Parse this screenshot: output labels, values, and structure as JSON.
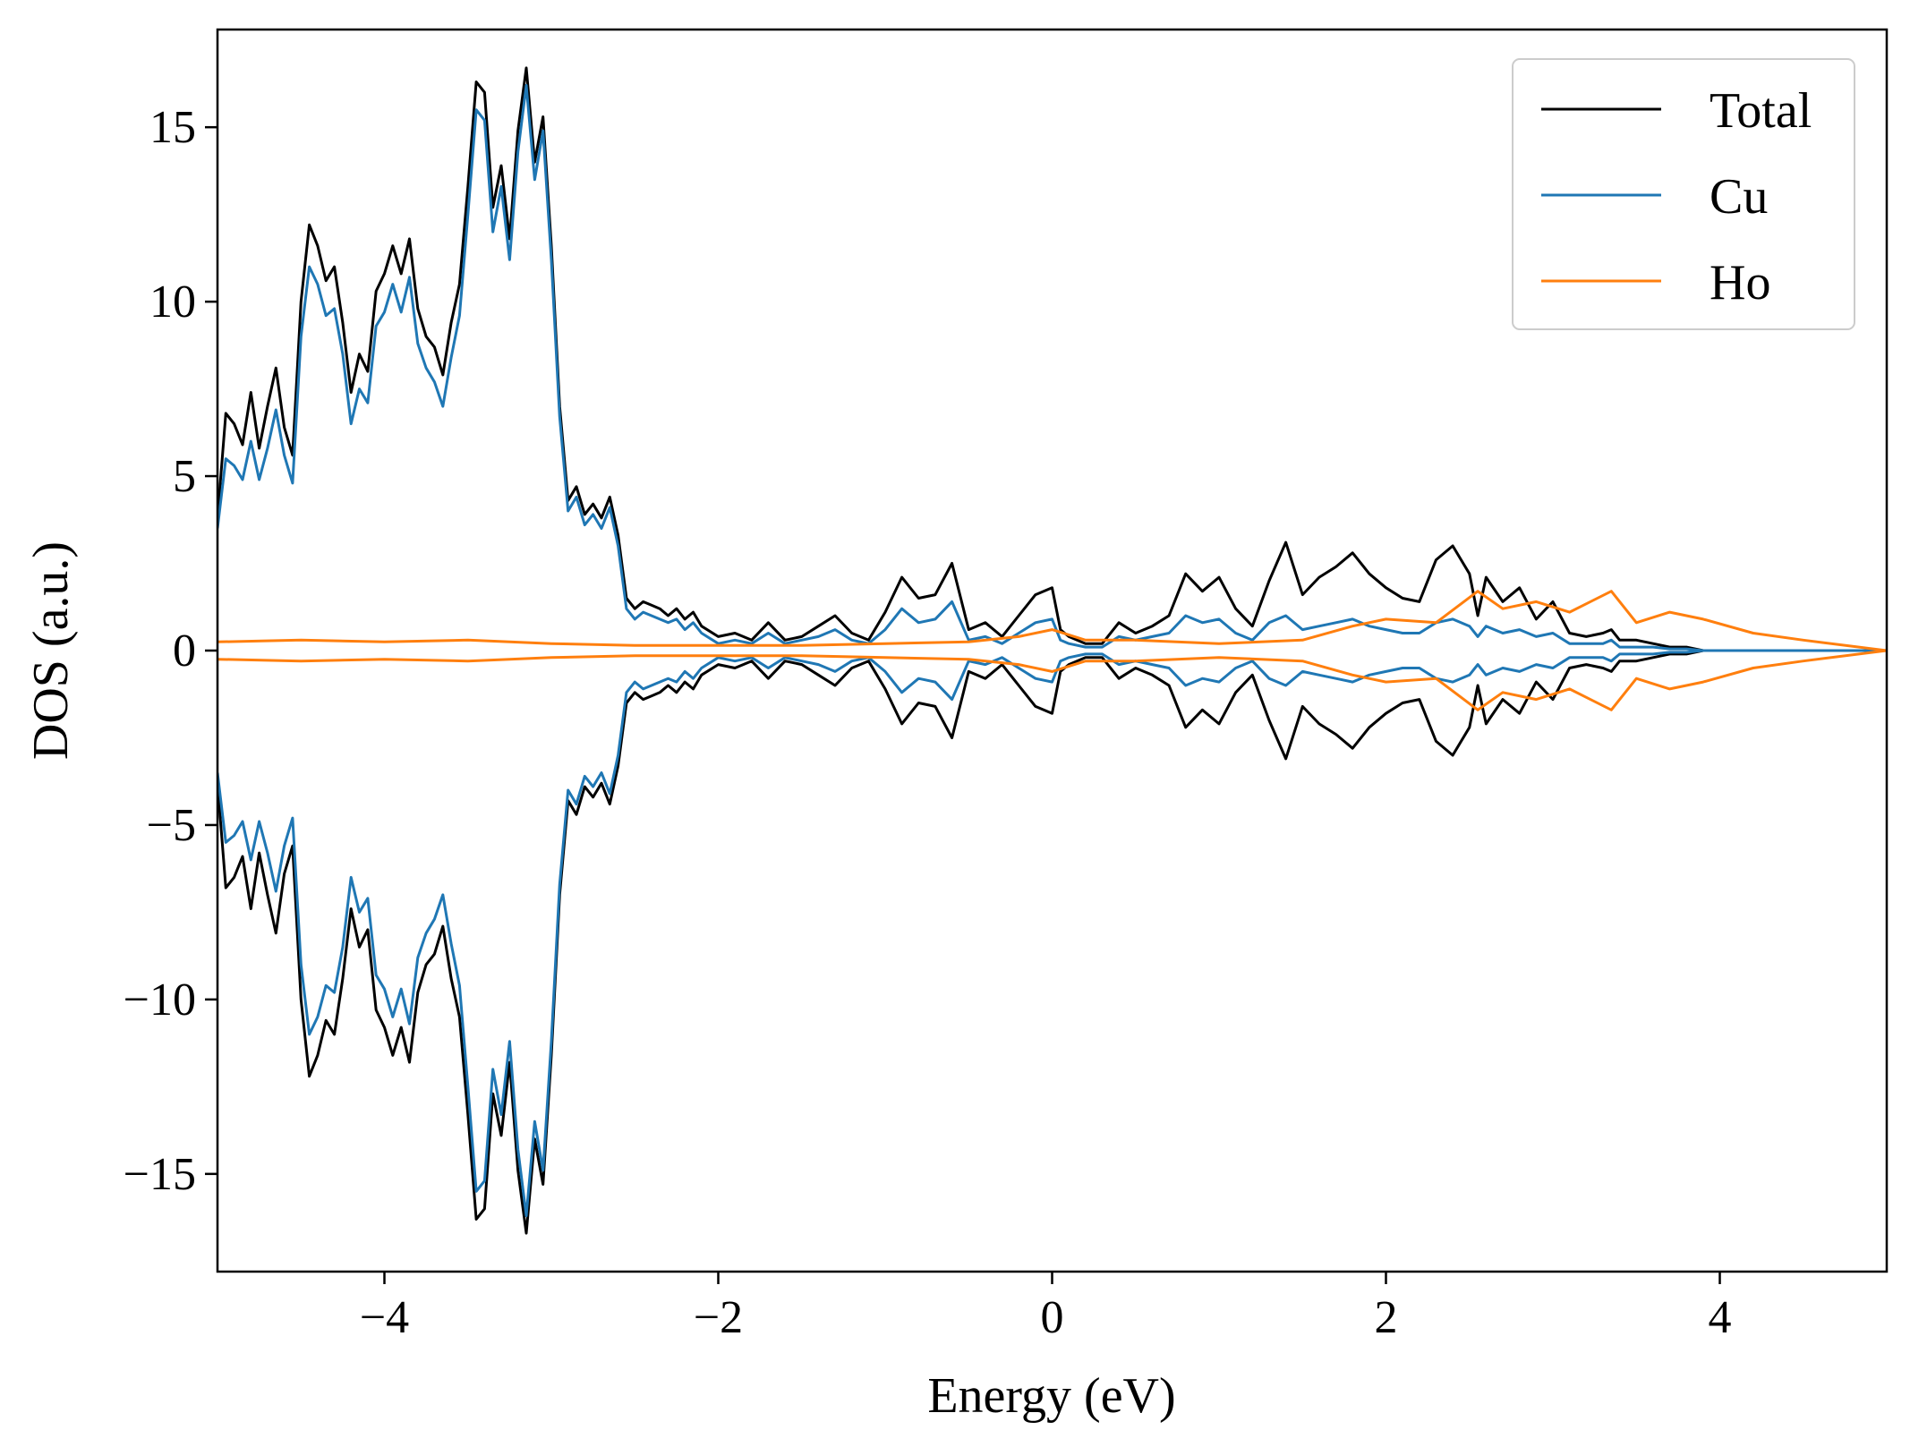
{
  "chart_data": {
    "type": "line",
    "title": "",
    "xlabel": "Energy (eV)",
    "ylabel": "DOS (a.u.)",
    "xlim": [
      -5,
      5
    ],
    "ylim": [
      -17.8,
      17.8
    ],
    "xticks": [
      -4,
      -2,
      0,
      2,
      4
    ],
    "xtick_labels": [
      "−4",
      "−2",
      "0",
      "2",
      "4"
    ],
    "yticks": [
      -15,
      -10,
      -5,
      0,
      5,
      10,
      15
    ],
    "ytick_labels": [
      "−15",
      "−10",
      "−5",
      "0",
      "5",
      "10",
      "15"
    ],
    "grid": false,
    "legend_position": "top-right",
    "spin_mirrored": true,
    "series": [
      {
        "name": "Total",
        "color": "#000000",
        "x": [
          -5.0,
          -4.95,
          -4.9,
          -4.85,
          -4.8,
          -4.75,
          -4.7,
          -4.65,
          -4.6,
          -4.55,
          -4.5,
          -4.45,
          -4.4,
          -4.35,
          -4.3,
          -4.25,
          -4.2,
          -4.15,
          -4.1,
          -4.05,
          -4.0,
          -3.95,
          -3.9,
          -3.85,
          -3.8,
          -3.75,
          -3.7,
          -3.65,
          -3.6,
          -3.55,
          -3.5,
          -3.45,
          -3.4,
          -3.35,
          -3.3,
          -3.25,
          -3.2,
          -3.15,
          -3.1,
          -3.05,
          -3.0,
          -2.95,
          -2.9,
          -2.85,
          -2.8,
          -2.75,
          -2.7,
          -2.65,
          -2.6,
          -2.55,
          -2.5,
          -2.45,
          -2.4,
          -2.35,
          -2.3,
          -2.25,
          -2.2,
          -2.15,
          -2.1,
          -2.0,
          -1.9,
          -1.8,
          -1.7,
          -1.6,
          -1.5,
          -1.4,
          -1.3,
          -1.2,
          -1.1,
          -1.0,
          -0.9,
          -0.8,
          -0.7,
          -0.6,
          -0.5,
          -0.4,
          -0.3,
          -0.2,
          -0.1,
          0.0,
          0.05,
          0.1,
          0.2,
          0.3,
          0.4,
          0.5,
          0.6,
          0.7,
          0.8,
          0.9,
          1.0,
          1.1,
          1.2,
          1.3,
          1.4,
          1.5,
          1.6,
          1.7,
          1.8,
          1.9,
          2.0,
          2.1,
          2.2,
          2.3,
          2.4,
          2.5,
          2.55,
          2.6,
          2.7,
          2.8,
          2.9,
          3.0,
          3.1,
          3.2,
          3.3,
          3.35,
          3.4,
          3.5,
          3.6,
          3.7,
          3.8,
          3.9,
          4.0,
          4.1,
          4.2,
          4.3,
          4.4,
          4.5,
          4.6,
          4.7,
          4.8,
          4.9,
          5.0
        ],
        "values": [
          3.8,
          6.8,
          6.5,
          5.9,
          7.4,
          5.8,
          7.0,
          8.1,
          6.4,
          5.6,
          10.0,
          12.2,
          11.6,
          10.6,
          11.0,
          9.4,
          7.4,
          8.5,
          8.0,
          10.3,
          10.8,
          11.6,
          10.8,
          11.8,
          9.8,
          9.0,
          8.7,
          7.9,
          9.4,
          10.5,
          13.3,
          16.3,
          16.0,
          12.7,
          13.9,
          11.8,
          14.9,
          16.7,
          14.0,
          15.3,
          11.6,
          7.0,
          4.3,
          4.7,
          3.9,
          4.2,
          3.8,
          4.4,
          3.3,
          1.5,
          1.2,
          1.4,
          1.3,
          1.2,
          1.0,
          1.2,
          0.9,
          1.1,
          0.7,
          0.4,
          0.5,
          0.3,
          0.8,
          0.3,
          0.4,
          0.7,
          1.0,
          0.5,
          0.3,
          1.1,
          2.1,
          1.5,
          1.6,
          2.5,
          0.6,
          0.8,
          0.4,
          1.0,
          1.6,
          1.8,
          0.6,
          0.4,
          0.2,
          0.2,
          0.8,
          0.5,
          0.7,
          1.0,
          2.2,
          1.7,
          2.1,
          1.2,
          0.7,
          2.0,
          3.1,
          1.6,
          2.1,
          2.4,
          2.8,
          2.2,
          1.8,
          1.5,
          1.4,
          2.6,
          3.0,
          2.2,
          1.0,
          2.1,
          1.4,
          1.8,
          0.9,
          1.4,
          0.5,
          0.4,
          0.5,
          0.6,
          0.3,
          0.3,
          0.2,
          0.1,
          0.1,
          0.0,
          0.0,
          0.0,
          0.0,
          0.0,
          0.0,
          0.0,
          0.0,
          0.0,
          0.0,
          0.0,
          0.0
        ]
      },
      {
        "name": "Cu",
        "color": "#1f77b4",
        "x": [
          -5.0,
          -4.95,
          -4.9,
          -4.85,
          -4.8,
          -4.75,
          -4.7,
          -4.65,
          -4.6,
          -4.55,
          -4.5,
          -4.45,
          -4.4,
          -4.35,
          -4.3,
          -4.25,
          -4.2,
          -4.15,
          -4.1,
          -4.05,
          -4.0,
          -3.95,
          -3.9,
          -3.85,
          -3.8,
          -3.75,
          -3.7,
          -3.65,
          -3.6,
          -3.55,
          -3.5,
          -3.45,
          -3.4,
          -3.35,
          -3.3,
          -3.25,
          -3.2,
          -3.15,
          -3.1,
          -3.05,
          -3.0,
          -2.95,
          -2.9,
          -2.85,
          -2.8,
          -2.75,
          -2.7,
          -2.65,
          -2.6,
          -2.55,
          -2.5,
          -2.45,
          -2.4,
          -2.35,
          -2.3,
          -2.25,
          -2.2,
          -2.15,
          -2.1,
          -2.0,
          -1.9,
          -1.8,
          -1.7,
          -1.6,
          -1.5,
          -1.4,
          -1.3,
          -1.2,
          -1.1,
          -1.0,
          -0.9,
          -0.8,
          -0.7,
          -0.6,
          -0.5,
          -0.4,
          -0.3,
          -0.2,
          -0.1,
          0.0,
          0.05,
          0.1,
          0.2,
          0.3,
          0.4,
          0.5,
          0.6,
          0.7,
          0.8,
          0.9,
          1.0,
          1.1,
          1.2,
          1.3,
          1.4,
          1.5,
          1.6,
          1.7,
          1.8,
          1.9,
          2.0,
          2.1,
          2.2,
          2.3,
          2.4,
          2.5,
          2.55,
          2.6,
          2.7,
          2.8,
          2.9,
          3.0,
          3.1,
          3.2,
          3.3,
          3.35,
          3.4,
          3.5,
          3.6,
          3.7,
          3.8,
          3.9,
          4.0,
          4.1,
          4.2,
          4.3,
          4.4,
          4.5,
          4.6,
          4.7,
          4.8,
          4.9,
          5.0
        ],
        "values": [
          3.5,
          5.5,
          5.3,
          4.9,
          6.0,
          4.9,
          5.8,
          6.9,
          5.6,
          4.8,
          9.0,
          11.0,
          10.5,
          9.6,
          9.8,
          8.5,
          6.5,
          7.5,
          7.1,
          9.3,
          9.7,
          10.5,
          9.7,
          10.7,
          8.8,
          8.1,
          7.7,
          7.0,
          8.4,
          9.6,
          12.5,
          15.5,
          15.2,
          12.0,
          13.3,
          11.2,
          14.3,
          16.2,
          13.5,
          14.9,
          11.2,
          6.7,
          4.0,
          4.4,
          3.6,
          3.9,
          3.5,
          4.1,
          3.0,
          1.2,
          0.9,
          1.1,
          1.0,
          0.9,
          0.8,
          0.9,
          0.6,
          0.8,
          0.5,
          0.2,
          0.3,
          0.2,
          0.5,
          0.2,
          0.3,
          0.4,
          0.6,
          0.3,
          0.2,
          0.6,
          1.2,
          0.8,
          0.9,
          1.4,
          0.3,
          0.4,
          0.2,
          0.5,
          0.8,
          0.9,
          0.3,
          0.2,
          0.1,
          0.1,
          0.4,
          0.3,
          0.4,
          0.5,
          1.0,
          0.8,
          0.9,
          0.5,
          0.3,
          0.8,
          1.0,
          0.6,
          0.7,
          0.8,
          0.9,
          0.7,
          0.6,
          0.5,
          0.5,
          0.8,
          0.9,
          0.7,
          0.4,
          0.7,
          0.5,
          0.6,
          0.4,
          0.5,
          0.2,
          0.2,
          0.2,
          0.3,
          0.1,
          0.1,
          0.1,
          0.05,
          0.05,
          0.0,
          0.0,
          0.0,
          0.0,
          0.0,
          0.0,
          0.0,
          0.0,
          0.0,
          0.0,
          0.0,
          0.0
        ]
      },
      {
        "name": "Ho",
        "color": "#ff7f0e",
        "x": [
          -5.0,
          -4.5,
          -4.0,
          -3.5,
          -3.0,
          -2.5,
          -2.0,
          -1.5,
          -1.0,
          -0.5,
          -0.2,
          0.0,
          0.2,
          0.5,
          1.0,
          1.5,
          1.8,
          2.0,
          2.3,
          2.55,
          2.7,
          2.9,
          3.1,
          3.35,
          3.5,
          3.7,
          3.9,
          4.2,
          4.5,
          5.0
        ],
        "values": [
          0.25,
          0.3,
          0.25,
          0.3,
          0.2,
          0.15,
          0.15,
          0.15,
          0.2,
          0.25,
          0.4,
          0.6,
          0.3,
          0.3,
          0.2,
          0.3,
          0.7,
          0.9,
          0.8,
          1.7,
          1.2,
          1.4,
          1.1,
          1.7,
          0.8,
          1.1,
          0.9,
          0.5,
          0.3,
          0.0
        ]
      }
    ]
  }
}
